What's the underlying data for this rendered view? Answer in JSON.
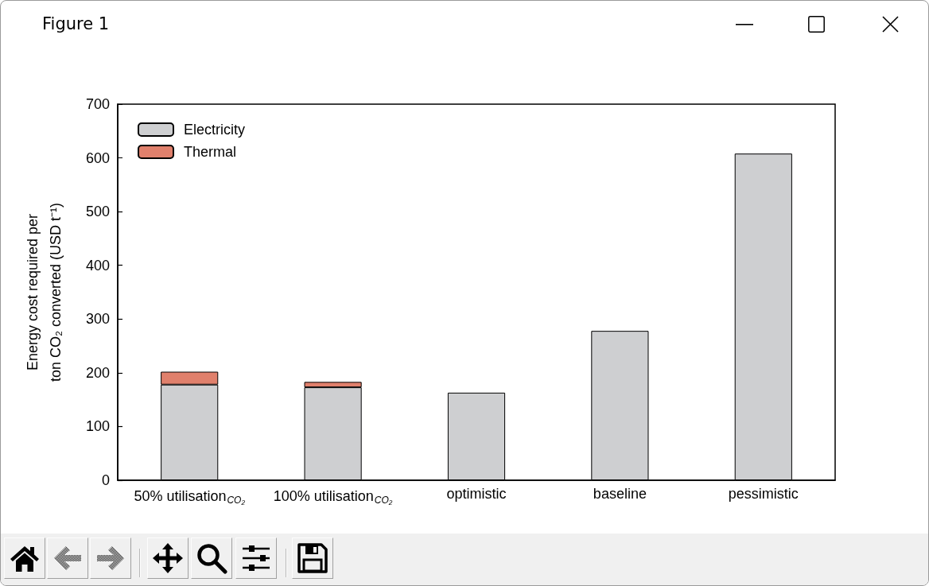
{
  "chart_data": {
    "type": "bar",
    "ylabel": "Energy cost required per\nton CO₂ converted (USD t⁻¹)",
    "categories": [
      "50% utilisation$_{CO₂}$",
      "100% utilisation$_{CO₂}$",
      "optimistic",
      "baseline",
      "pessimistic"
    ],
    "series": [
      {
        "name": "Electricity",
        "color": "#cecfd1",
        "values": [
          178,
          173,
          163,
          278,
          608
        ]
      },
      {
        "name": "Thermal",
        "color": "#e0806c",
        "values": [
          24,
          10,
          null,
          null,
          null
        ]
      }
    ],
    "stacked": true,
    "ylim": [
      0,
      700
    ],
    "yticks": [
      0,
      100,
      200,
      300,
      400,
      500,
      600,
      700
    ],
    "legend": "top left",
    "annotations": [
      "Figure 1"
    ]
  }
}
